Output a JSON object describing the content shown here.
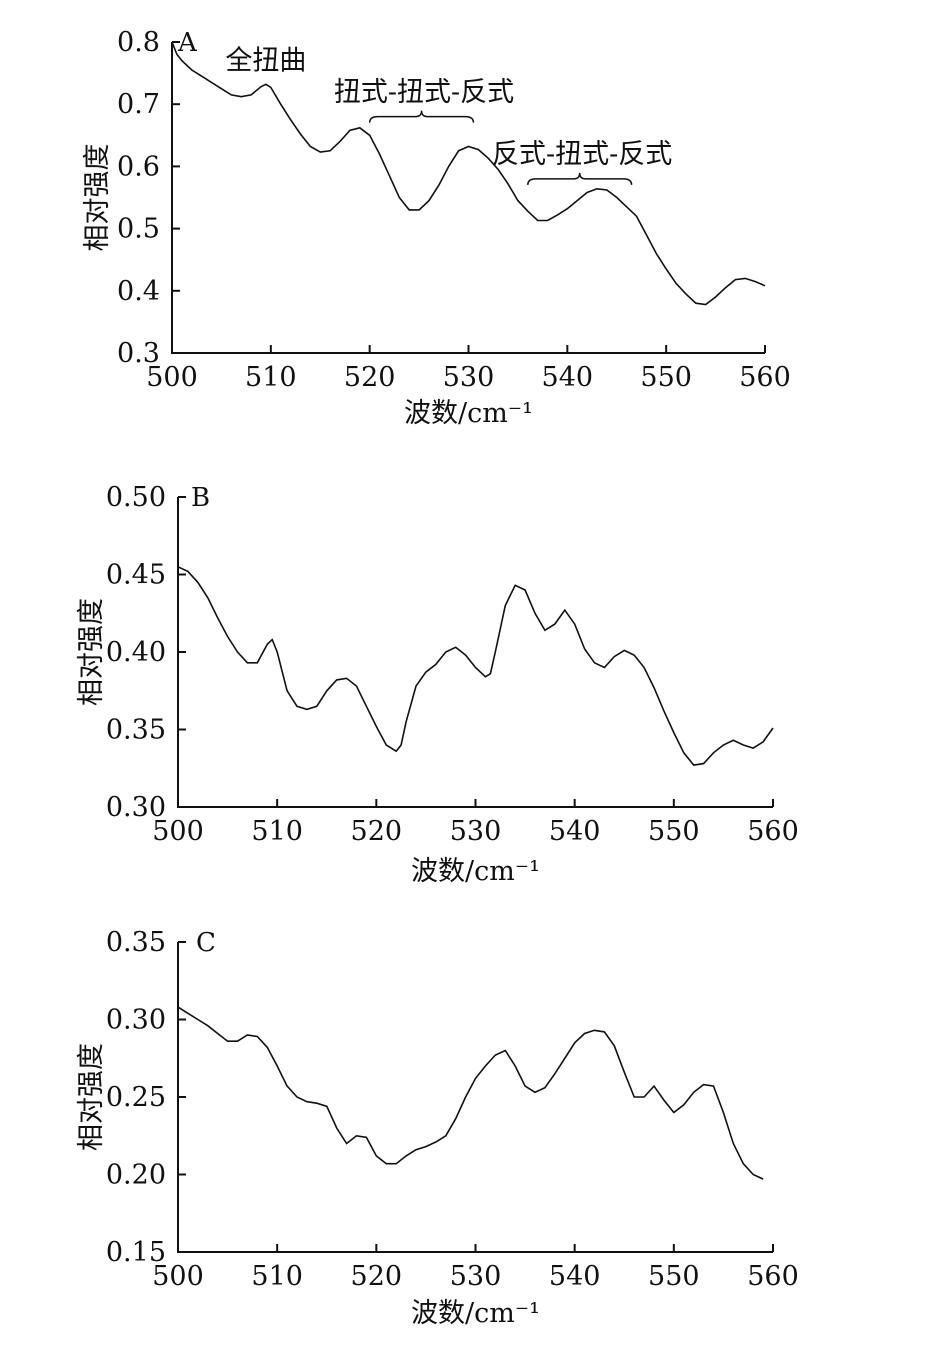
{
  "chart_data": [
    {
      "type": "line",
      "panel": "A",
      "xlabel": "波数/cm⁻¹",
      "ylabel": "相对强度",
      "xlim": [
        500,
        560
      ],
      "ylim": [
        0.3,
        0.8
      ],
      "xticks": [
        "500",
        "510",
        "520",
        "530",
        "540",
        "550",
        "560"
      ],
      "yticks": [
        "0.3",
        "0.4",
        "0.5",
        "0.6",
        "0.7",
        "0.8"
      ],
      "annotations": [
        {
          "text": "全扭曲",
          "x": 509.5,
          "y": 0.77,
          "brace": null
        },
        {
          "text": "扭式-扭式-反式",
          "x": 525.5,
          "y": 0.72,
          "brace": [
            520,
            530.5,
            0.68
          ]
        },
        {
          "text": "反式-扭式-反式",
          "x": 541.5,
          "y": 0.62,
          "brace": [
            536,
            546.5,
            0.58
          ]
        }
      ],
      "x": [
        500.0,
        500.5,
        501.0,
        502.0,
        503.0,
        504.0,
        505.0,
        506.0,
        507.0,
        508.0,
        509.0,
        509.5,
        510.0,
        511.0,
        512.0,
        513.0,
        514.0,
        515.0,
        516.0,
        517.0,
        518.0,
        519.0,
        520.0,
        521.0,
        522.0,
        523.0,
        524.0,
        525.0,
        526.0,
        527.0,
        528.0,
        529.0,
        530.0,
        531.0,
        532.0,
        533.0,
        534.0,
        535.0,
        536.0,
        537.0,
        538.0,
        539.0,
        540.0,
        541.0,
        542.0,
        543.0,
        544.0,
        545.0,
        546.0,
        547.0,
        548.0,
        549.0,
        550.0,
        551.0,
        552.0,
        553.0,
        554.0,
        555.0,
        556.0,
        557.0,
        558.0,
        559.0,
        560.0
      ],
      "values": [
        0.8,
        0.78,
        0.77,
        0.755,
        0.745,
        0.735,
        0.725,
        0.715,
        0.712,
        0.715,
        0.728,
        0.732,
        0.727,
        0.7,
        0.675,
        0.652,
        0.632,
        0.623,
        0.625,
        0.64,
        0.658,
        0.662,
        0.65,
        0.62,
        0.585,
        0.55,
        0.53,
        0.53,
        0.545,
        0.57,
        0.6,
        0.625,
        0.632,
        0.627,
        0.613,
        0.595,
        0.572,
        0.545,
        0.528,
        0.513,
        0.513,
        0.522,
        0.532,
        0.545,
        0.558,
        0.564,
        0.562,
        0.55,
        0.535,
        0.52,
        0.49,
        0.46,
        0.435,
        0.412,
        0.395,
        0.38,
        0.378,
        0.39,
        0.405,
        0.418,
        0.42,
        0.415,
        0.408
      ]
    },
    {
      "type": "line",
      "panel": "B",
      "xlabel": "波数/cm⁻¹",
      "ylabel": "相对强度",
      "xlim": [
        500,
        560
      ],
      "ylim": [
        0.3,
        0.5
      ],
      "xticks": [
        "500",
        "510",
        "520",
        "530",
        "540",
        "550",
        "560"
      ],
      "yticks": [
        "0.30",
        "0.35",
        "0.40",
        "0.45",
        "0.50"
      ],
      "x": [
        500.0,
        501.0,
        502.0,
        503.0,
        504.0,
        505.0,
        506.0,
        507.0,
        508.0,
        509.0,
        509.5,
        510.0,
        511.0,
        512.0,
        513.0,
        514.0,
        515.0,
        516.0,
        517.0,
        518.0,
        519.0,
        520.0,
        521.0,
        522.0,
        522.5,
        523.0,
        524.0,
        525.0,
        526.0,
        527.0,
        528.0,
        529.0,
        530.0,
        531.0,
        531.5,
        532.0,
        533.0,
        534.0,
        535.0,
        536.0,
        537.0,
        538.0,
        539.0,
        540.0,
        541.0,
        542.0,
        543.0,
        544.0,
        545.0,
        546.0,
        547.0,
        548.0,
        549.0,
        550.0,
        551.0,
        552.0,
        553.0,
        554.0,
        555.0,
        556.0,
        557.0,
        558.0,
        559.0,
        560.0
      ],
      "values": [
        0.455,
        0.452,
        0.445,
        0.435,
        0.422,
        0.41,
        0.4,
        0.393,
        0.393,
        0.405,
        0.408,
        0.4,
        0.375,
        0.365,
        0.363,
        0.365,
        0.375,
        0.382,
        0.383,
        0.378,
        0.365,
        0.352,
        0.34,
        0.336,
        0.34,
        0.355,
        0.378,
        0.387,
        0.392,
        0.4,
        0.403,
        0.398,
        0.39,
        0.384,
        0.386,
        0.4,
        0.43,
        0.443,
        0.44,
        0.425,
        0.414,
        0.418,
        0.427,
        0.418,
        0.402,
        0.393,
        0.39,
        0.397,
        0.401,
        0.398,
        0.39,
        0.377,
        0.362,
        0.348,
        0.335,
        0.327,
        0.328,
        0.335,
        0.34,
        0.343,
        0.34,
        0.338,
        0.342,
        0.351
      ]
    },
    {
      "type": "line",
      "panel": "C",
      "xlabel": "波数/cm⁻¹",
      "ylabel": "相对强度",
      "xlim": [
        500,
        560
      ],
      "ylim": [
        0.15,
        0.35
      ],
      "xticks": [
        "500",
        "510",
        "520",
        "530",
        "540",
        "550",
        "560"
      ],
      "yticks": [
        "0.15",
        "0.20",
        "0.25",
        "0.30",
        "0.35"
      ],
      "x": [
        500.0,
        501.0,
        502.0,
        503.0,
        504.0,
        505.0,
        506.0,
        507.0,
        508.0,
        509.0,
        510.0,
        511.0,
        512.0,
        513.0,
        514.0,
        515.0,
        516.0,
        517.0,
        518.0,
        519.0,
        520.0,
        521.0,
        522.0,
        523.0,
        524.0,
        525.0,
        526.0,
        527.0,
        528.0,
        529.0,
        530.0,
        531.0,
        532.0,
        533.0,
        534.0,
        535.0,
        536.0,
        537.0,
        538.0,
        539.0,
        540.0,
        541.0,
        542.0,
        543.0,
        544.0,
        545.0,
        546.0,
        547.0,
        548.0,
        549.0,
        550.0,
        551.0,
        552.0,
        553.0,
        554.0,
        555.0,
        556.0,
        557.0,
        558.0,
        559.0
      ],
      "values": [
        0.308,
        0.304,
        0.3,
        0.296,
        0.291,
        0.286,
        0.286,
        0.29,
        0.289,
        0.282,
        0.27,
        0.257,
        0.25,
        0.247,
        0.246,
        0.244,
        0.23,
        0.22,
        0.225,
        0.224,
        0.212,
        0.207,
        0.207,
        0.212,
        0.216,
        0.218,
        0.221,
        0.225,
        0.236,
        0.25,
        0.262,
        0.27,
        0.277,
        0.28,
        0.27,
        0.257,
        0.253,
        0.256,
        0.265,
        0.275,
        0.285,
        0.291,
        0.293,
        0.292,
        0.283,
        0.266,
        0.25,
        0.25,
        0.257,
        0.248,
        0.24,
        0.245,
        0.253,
        0.258,
        0.257,
        0.24,
        0.22,
        0.207,
        0.2,
        0.197
      ]
    }
  ]
}
